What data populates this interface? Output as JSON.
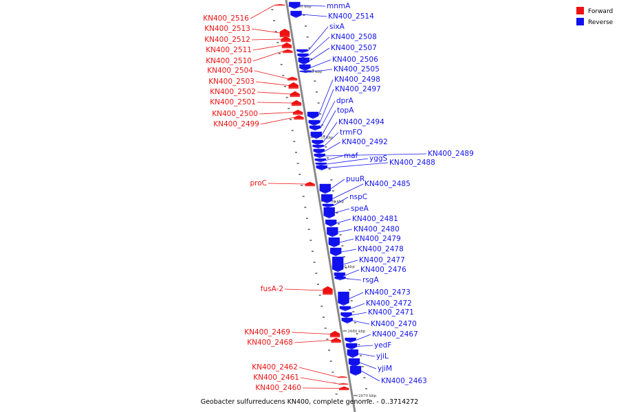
{
  "title": "Geobacter sulfurreducens KN400, complete genome. - 0..3714272",
  "legend": [
    {
      "label": "Forward",
      "color": "#ee1111"
    },
    {
      "label": "Reverse",
      "color": "#1111ee"
    }
  ],
  "ticks": [
    "2730 kbp",
    "2720 kbp",
    "2710 kbp",
    "2700 kbp",
    "2690 kbp",
    "2680 kbp",
    "2670 kbp"
  ],
  "forward_genes": [
    "KN400_2516",
    "KN400_2513",
    "KN400_2512",
    "KN400_2511",
    "KN400_2510",
    "KN400_2504",
    "KN400_2503",
    "KN400_2502",
    "KN400_2501",
    "KN400_2500",
    "KN400_2499",
    "proC",
    "fusA-2",
    "KN400_2469",
    "KN400_2468",
    "KN400_2462",
    "KN400_2461",
    "KN400_2460"
  ],
  "reverse_genes": [
    "mnmA",
    "KN400_2514",
    "sixA",
    "KN400_2508",
    "KN400_2507",
    "KN400_2506",
    "KN400_2505",
    "KN400_2498",
    "KN400_2497",
    "dprA",
    "topA",
    "KN400_2494",
    "trmFO",
    "KN400_2492",
    "KN400_2489",
    "maf",
    "yggS",
    "KN400_2488",
    "puuR",
    "KN400_2485",
    "nspC",
    "speA",
    "KN400_2481",
    "KN400_2480",
    "KN400_2479",
    "KN400_2478",
    "KN400_2477",
    "KN400_2476",
    "rsgA",
    "KN400_2473",
    "KN400_2472",
    "KN400_2471",
    "KN400_2470",
    "KN400_2467",
    "yedF",
    "yjiL",
    "yjiM",
    "KN400_2463"
  ]
}
